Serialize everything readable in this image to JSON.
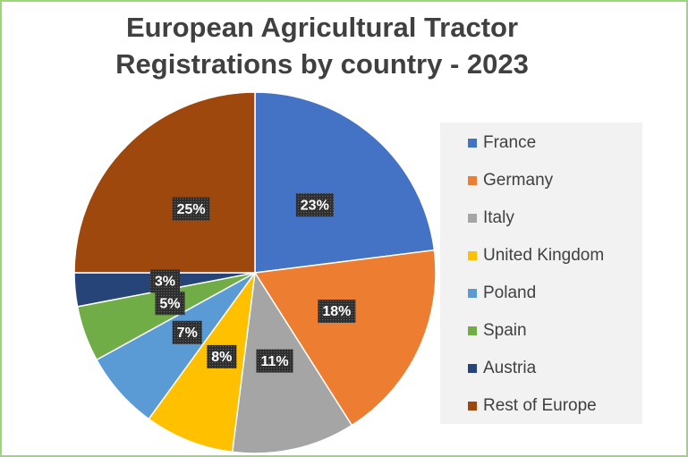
{
  "chart_data": {
    "type": "pie",
    "title": "European Agricultural Tractor Registrations by country - 2023",
    "categories": [
      "France",
      "Germany",
      "Italy",
      "United Kingdom",
      "Poland",
      "Spain",
      "Austria",
      "Rest of Europe"
    ],
    "values": [
      23,
      18,
      11,
      8,
      7,
      5,
      3,
      25
    ],
    "value_labels": [
      "23%",
      "18%",
      "11%",
      "8%",
      "7%",
      "5%",
      "3%",
      "25%"
    ],
    "colors": [
      "#4472c4",
      "#ed7d31",
      "#a5a5a5",
      "#ffc000",
      "#5b9bd5",
      "#70ad47",
      "#264478",
      "#9e480e"
    ],
    "legend": "right"
  }
}
